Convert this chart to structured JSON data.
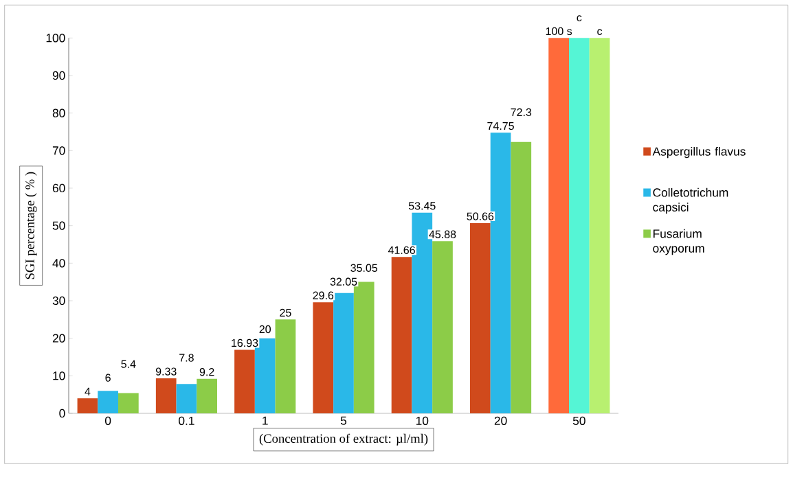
{
  "chart_data": {
    "type": "bar",
    "ylabel": "SGI  percentage ( % )",
    "xlabel": "(Concentration of extract: µl/ml)",
    "categories": [
      "0",
      "0.1",
      "1",
      "5",
      "10",
      "20",
      "50"
    ],
    "series": [
      {
        "name": "Aspergillus flavus",
        "color": "#d04a1c",
        "colors": [
          "#d04a1c",
          "#d04a1c",
          "#d04a1c",
          "#d04a1c",
          "#d04a1c",
          "#d04a1c",
          "#ff6a3a"
        ],
        "values": [
          4,
          9.33,
          16.93,
          29.6,
          41.66,
          50.66,
          100
        ],
        "value_labels": [
          "4",
          "9.33",
          "16.93",
          "29.6",
          "41.66",
          "50.66",
          "100 s"
        ]
      },
      {
        "name": "Colletotrichum capsici",
        "color": "#2ab8e8",
        "colors": [
          "#2ab8e8",
          "#2ab8e8",
          "#2ab8e8",
          "#2ab8e8",
          "#2ab8e8",
          "#2ab8e8",
          "#55f5d5"
        ],
        "values": [
          6,
          7.8,
          20,
          32.05,
          53.45,
          74.75,
          100
        ],
        "value_labels": [
          "6",
          "7.8",
          "20",
          "32.05",
          "53.45",
          "74.75",
          "c"
        ]
      },
      {
        "name": "Fusarium oxyporum",
        "color": "#8ccc48",
        "colors": [
          "#8ccc48",
          "#8ccc48",
          "#8ccc48",
          "#8ccc48",
          "#8ccc48",
          "#8ccc48",
          "#b8f070"
        ],
        "values": [
          5.4,
          9.2,
          25,
          35.05,
          45.88,
          72.3,
          100
        ],
        "value_labels": [
          "5.4",
          "9.2",
          "25",
          "35.05",
          "45.88",
          "72.3",
          "c"
        ]
      }
    ],
    "ylim": [
      0,
      100
    ],
    "yticks": [
      0,
      10,
      20,
      30,
      40,
      50,
      60,
      70,
      80,
      90,
      100
    ],
    "legend": "right"
  }
}
